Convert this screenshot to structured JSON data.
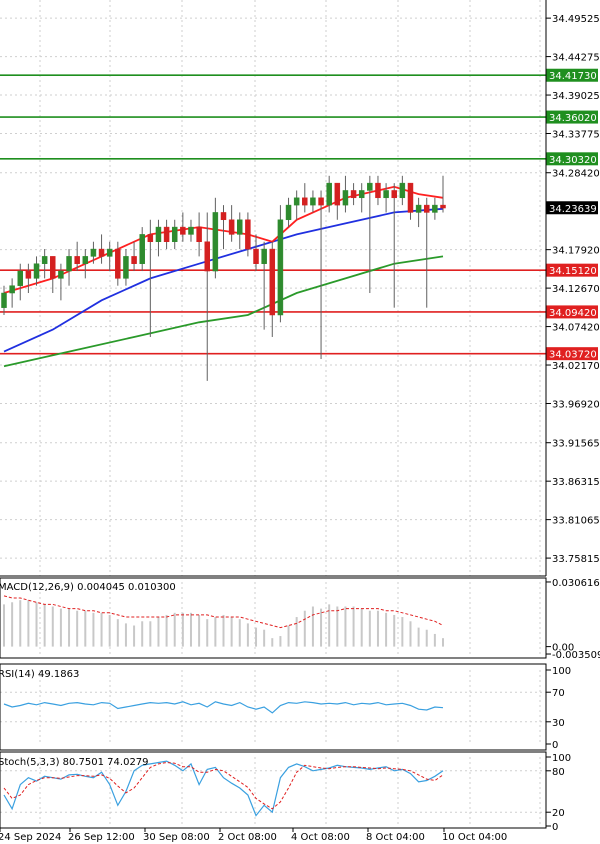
{
  "colors": {
    "bull": "#2e8b2e",
    "bear": "#d42020",
    "ma_fast": "#ff2020",
    "ma_mid": "#2030e0",
    "ma_slow": "#2a9a2a",
    "support": "#e02020",
    "resistance": "#1f8f1f",
    "grid": "#cfcfcf",
    "rsi": "#3aa0e0",
    "signal": "#e02020",
    "hist": "#c8c8c8"
  },
  "chart_data": [
    {
      "type": "candlestick",
      "ylim": [
        33.7337,
        34.52
      ],
      "price_ticks": [
        "34.49525",
        "34.44275",
        "34.39025",
        "34.33775",
        "34.28420",
        "34.17920",
        "34.12670",
        "34.07420",
        "34.02170",
        "33.96920",
        "33.91565",
        "33.86315",
        "33.81065",
        "33.75815"
      ],
      "current_price": "34.23639",
      "resistance_levels": [
        "34.41730",
        "34.36020",
        "34.30320"
      ],
      "support_levels": [
        "34.15120",
        "34.09420",
        "34.03720"
      ],
      "x_labels": [
        "24 Sep 2024",
        "26 Sep 12:00",
        "30 Sep 08:00",
        "2 Oct 08:00",
        "4 Oct 08:00",
        "8 Oct 04:00",
        "10 Oct 04:00"
      ],
      "candles": [
        [
          34.1,
          34.13,
          34.09,
          34.12
        ],
        [
          34.12,
          34.14,
          34.1,
          34.13
        ],
        [
          34.13,
          34.16,
          34.11,
          34.15
        ],
        [
          34.15,
          34.16,
          34.12,
          34.14
        ],
        [
          34.14,
          34.17,
          34.13,
          34.16
        ],
        [
          34.16,
          34.18,
          34.14,
          34.17
        ],
        [
          34.17,
          34.17,
          34.12,
          34.14
        ],
        [
          34.14,
          34.16,
          34.11,
          34.15
        ],
        [
          34.15,
          34.18,
          34.13,
          34.17
        ],
        [
          34.17,
          34.19,
          34.15,
          34.16
        ],
        [
          34.16,
          34.18,
          34.14,
          34.17
        ],
        [
          34.17,
          34.19,
          34.16,
          34.18
        ],
        [
          34.18,
          34.2,
          34.16,
          34.17
        ],
        [
          34.17,
          34.19,
          34.15,
          34.18
        ],
        [
          34.18,
          34.19,
          34.13,
          34.14
        ],
        [
          34.14,
          34.18,
          34.13,
          34.17
        ],
        [
          34.17,
          34.19,
          34.15,
          34.16
        ],
        [
          34.16,
          34.21,
          34.15,
          34.2
        ],
        [
          34.2,
          34.22,
          34.06,
          34.19
        ],
        [
          34.19,
          34.22,
          34.17,
          34.21
        ],
        [
          34.21,
          34.22,
          34.18,
          34.19
        ],
        [
          34.19,
          34.22,
          34.18,
          34.21
        ],
        [
          34.21,
          34.23,
          34.19,
          34.2
        ],
        [
          34.2,
          34.22,
          34.19,
          34.21
        ],
        [
          34.21,
          34.23,
          34.17,
          34.19
        ],
        [
          34.19,
          34.23,
          34.0,
          34.15
        ],
        [
          34.15,
          34.25,
          34.14,
          34.23
        ],
        [
          34.23,
          34.24,
          34.18,
          34.22
        ],
        [
          34.22,
          34.24,
          34.19,
          34.2
        ],
        [
          34.2,
          34.23,
          34.18,
          34.22
        ],
        [
          34.22,
          34.23,
          34.17,
          34.18
        ],
        [
          34.18,
          34.2,
          34.15,
          34.16
        ],
        [
          34.16,
          34.19,
          34.07,
          34.18
        ],
        [
          34.18,
          34.19,
          34.06,
          34.09
        ],
        [
          34.09,
          34.24,
          34.08,
          34.22
        ],
        [
          34.22,
          34.25,
          34.21,
          34.24
        ],
        [
          34.24,
          34.26,
          34.22,
          34.25
        ],
        [
          34.25,
          34.27,
          34.23,
          34.24
        ],
        [
          34.24,
          34.26,
          34.23,
          34.25
        ],
        [
          34.25,
          34.26,
          34.03,
          34.24
        ],
        [
          34.24,
          34.28,
          34.23,
          34.27
        ],
        [
          34.27,
          34.27,
          34.22,
          34.24
        ],
        [
          34.24,
          34.28,
          34.23,
          34.26
        ],
        [
          34.26,
          34.27,
          34.24,
          34.25
        ],
        [
          34.25,
          34.27,
          34.23,
          34.26
        ],
        [
          34.26,
          34.28,
          34.12,
          34.27
        ],
        [
          34.27,
          34.28,
          34.24,
          34.25
        ],
        [
          34.25,
          34.27,
          34.23,
          34.26
        ],
        [
          34.26,
          34.27,
          34.1,
          34.25
        ],
        [
          34.25,
          34.28,
          34.24,
          34.27
        ],
        [
          34.27,
          34.27,
          34.22,
          34.23
        ],
        [
          34.23,
          34.25,
          34.21,
          34.24
        ],
        [
          34.24,
          34.25,
          34.1,
          34.23
        ],
        [
          34.23,
          34.25,
          34.22,
          34.24
        ],
        [
          34.24,
          34.28,
          34.23,
          34.236
        ]
      ],
      "ma_fast": [
        [
          0,
          34.12
        ],
        [
          6,
          34.14
        ],
        [
          12,
          34.17
        ],
        [
          18,
          34.2
        ],
        [
          24,
          34.21
        ],
        [
          30,
          34.2
        ],
        [
          33,
          34.19
        ],
        [
          36,
          34.22
        ],
        [
          42,
          34.25
        ],
        [
          48,
          34.265
        ],
        [
          51,
          34.255
        ],
        [
          54,
          34.25
        ]
      ],
      "ma_mid": [
        [
          0,
          34.04
        ],
        [
          6,
          34.07
        ],
        [
          12,
          34.11
        ],
        [
          18,
          34.14
        ],
        [
          24,
          34.16
        ],
        [
          30,
          34.18
        ],
        [
          36,
          34.2
        ],
        [
          42,
          34.215
        ],
        [
          48,
          34.23
        ],
        [
          54,
          34.235
        ]
      ],
      "ma_slow": [
        [
          0,
          34.02
        ],
        [
          8,
          34.04
        ],
        [
          16,
          34.06
        ],
        [
          24,
          34.08
        ],
        [
          30,
          34.09
        ],
        [
          36,
          34.12
        ],
        [
          42,
          34.14
        ],
        [
          48,
          34.16
        ],
        [
          54,
          34.17
        ]
      ]
    },
    {
      "type": "macd",
      "label": "MACD(12,26,9) 0.004045 0.010300",
      "ylim": [
        -0.0035,
        0.0306
      ],
      "ticks": [
        "0.030616",
        "0.00",
        "-0.003509"
      ],
      "hist": [
        0.02,
        0.021,
        0.022,
        0.022,
        0.021,
        0.02,
        0.019,
        0.018,
        0.018,
        0.017,
        0.017,
        0.016,
        0.016,
        0.015,
        0.013,
        0.011,
        0.01,
        0.012,
        0.012,
        0.014,
        0.015,
        0.016,
        0.016,
        0.016,
        0.015,
        0.013,
        0.014,
        0.015,
        0.014,
        0.013,
        0.011,
        0.009,
        0.008,
        0.004,
        0.005,
        0.01,
        0.014,
        0.017,
        0.019,
        0.018,
        0.02,
        0.019,
        0.019,
        0.019,
        0.018,
        0.017,
        0.017,
        0.016,
        0.015,
        0.014,
        0.012,
        0.009,
        0.008,
        0.006,
        0.004
      ],
      "signal": [
        0.024,
        0.023,
        0.023,
        0.022,
        0.021,
        0.02,
        0.02,
        0.019,
        0.018,
        0.018,
        0.017,
        0.017,
        0.016,
        0.016,
        0.015,
        0.014,
        0.014,
        0.014,
        0.014,
        0.014,
        0.014,
        0.015,
        0.015,
        0.015,
        0.015,
        0.015,
        0.014,
        0.014,
        0.014,
        0.014,
        0.013,
        0.012,
        0.011,
        0.01,
        0.009,
        0.01,
        0.011,
        0.013,
        0.015,
        0.016,
        0.017,
        0.017,
        0.018,
        0.018,
        0.018,
        0.018,
        0.018,
        0.017,
        0.017,
        0.016,
        0.015,
        0.014,
        0.013,
        0.012,
        0.01
      ]
    },
    {
      "type": "rsi",
      "label": "RSI(14) 49.1863",
      "ylim": [
        0,
        100
      ],
      "ticks": [
        "100",
        "70",
        "30",
        "0"
      ],
      "values": [
        54,
        50,
        52,
        55,
        53,
        56,
        54,
        52,
        55,
        56,
        54,
        53,
        56,
        55,
        48,
        50,
        52,
        54,
        56,
        55,
        56,
        54,
        57,
        53,
        55,
        50,
        57,
        54,
        52,
        56,
        50,
        47,
        50,
        42,
        52,
        56,
        55,
        57,
        56,
        54,
        55,
        54,
        56,
        53,
        55,
        54,
        56,
        53,
        54,
        55,
        52,
        47,
        46,
        50,
        49
      ]
    },
    {
      "type": "stochastic",
      "label": "Stoch(5,3,3) 80.7501 74.0279",
      "ylim": [
        0,
        100
      ],
      "ticks": [
        "100",
        "80",
        "20",
        "0"
      ],
      "k": [
        45,
        25,
        60,
        70,
        65,
        72,
        70,
        68,
        74,
        75,
        72,
        70,
        78,
        60,
        30,
        50,
        80,
        88,
        90,
        92,
        94,
        88,
        80,
        90,
        60,
        82,
        85,
        70,
        62,
        55,
        45,
        15,
        30,
        20,
        70,
        85,
        90,
        86,
        80,
        82,
        84,
        88,
        86,
        85,
        84,
        82,
        84,
        86,
        80,
        82,
        76,
        64,
        66,
        72,
        80
      ],
      "d": [
        55,
        40,
        45,
        60,
        66,
        70,
        70,
        69,
        71,
        73,
        73,
        72,
        74,
        69,
        58,
        48,
        55,
        70,
        85,
        90,
        92,
        91,
        86,
        86,
        78,
        78,
        82,
        80,
        72,
        64,
        56,
        40,
        32,
        25,
        35,
        55,
        78,
        88,
        86,
        84,
        83,
        85,
        86,
        86,
        85,
        84,
        83,
        84,
        83,
        82,
        80,
        74,
        68,
        66,
        74
      ]
    }
  ]
}
